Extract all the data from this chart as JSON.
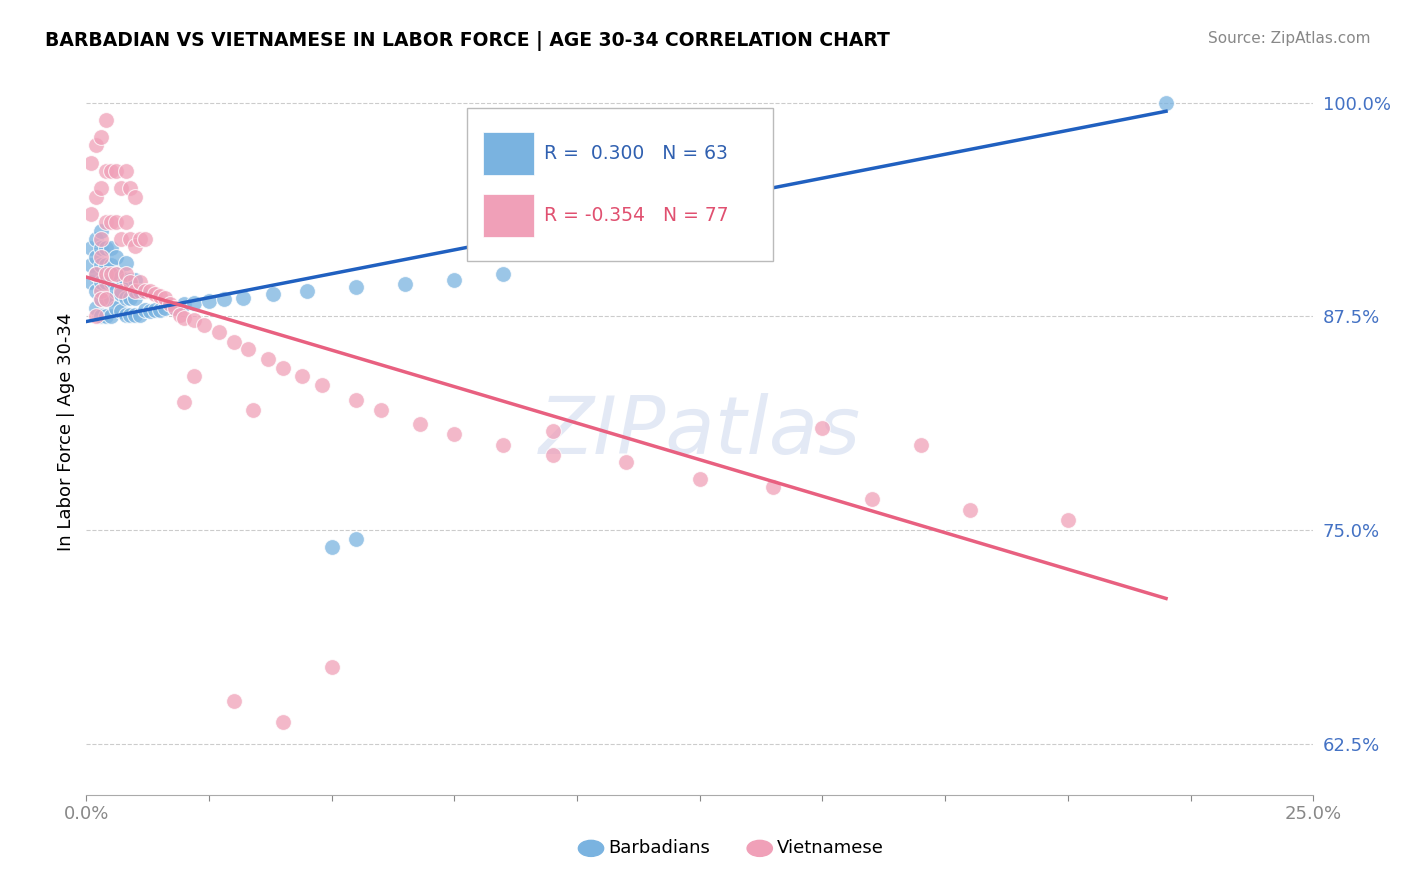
{
  "title": "BARBADIAN VS VIETNAMESE IN LABOR FORCE | AGE 30-34 CORRELATION CHART",
  "source": "Source: ZipAtlas.com",
  "ylabel": "In Labor Force | Age 30-34",
  "xlim": [
    0.0,
    0.25
  ],
  "ylim": [
    0.595,
    1.02
  ],
  "xticks": [
    0.0,
    0.025,
    0.05,
    0.075,
    0.1,
    0.125,
    0.15,
    0.175,
    0.2,
    0.225,
    0.25
  ],
  "yticks": [
    0.625,
    0.75,
    0.875,
    1.0
  ],
  "yticklabels": [
    "62.5%",
    "75.0%",
    "87.5%",
    "100.0%"
  ],
  "blue_R": 0.3,
  "blue_N": 63,
  "pink_R": -0.354,
  "pink_N": 77,
  "blue_color": "#7ab3e0",
  "pink_color": "#f0a0b8",
  "blue_line_color": "#2060c0",
  "pink_line_color": "#e86080",
  "legend_label_blue": "Barbadians",
  "legend_label_pink": "Vietnamese",
  "blue_scatter_x": [
    0.001,
    0.001,
    0.001,
    0.002,
    0.002,
    0.002,
    0.002,
    0.002,
    0.003,
    0.003,
    0.003,
    0.003,
    0.003,
    0.003,
    0.004,
    0.004,
    0.004,
    0.004,
    0.004,
    0.005,
    0.005,
    0.005,
    0.005,
    0.005,
    0.006,
    0.006,
    0.006,
    0.006,
    0.007,
    0.007,
    0.007,
    0.008,
    0.008,
    0.008,
    0.008,
    0.009,
    0.009,
    0.009,
    0.01,
    0.01,
    0.01,
    0.011,
    0.011,
    0.012,
    0.013,
    0.014,
    0.015,
    0.016,
    0.018,
    0.02,
    0.022,
    0.025,
    0.028,
    0.032,
    0.038,
    0.045,
    0.055,
    0.065,
    0.075,
    0.085,
    0.05,
    0.055,
    0.22
  ],
  "blue_scatter_y": [
    0.895,
    0.905,
    0.915,
    0.88,
    0.89,
    0.9,
    0.91,
    0.92,
    0.875,
    0.885,
    0.895,
    0.905,
    0.915,
    0.925,
    0.875,
    0.885,
    0.895,
    0.905,
    0.915,
    0.875,
    0.885,
    0.895,
    0.905,
    0.915,
    0.88,
    0.89,
    0.9,
    0.91,
    0.878,
    0.888,
    0.898,
    0.876,
    0.886,
    0.896,
    0.906,
    0.876,
    0.886,
    0.896,
    0.876,
    0.886,
    0.896,
    0.876,
    0.89,
    0.879,
    0.878,
    0.879,
    0.879,
    0.88,
    0.88,
    0.882,
    0.883,
    0.884,
    0.885,
    0.886,
    0.888,
    0.89,
    0.892,
    0.894,
    0.896,
    0.9,
    0.74,
    0.745,
    1.0
  ],
  "pink_scatter_x": [
    0.001,
    0.001,
    0.002,
    0.002,
    0.002,
    0.003,
    0.003,
    0.003,
    0.003,
    0.004,
    0.004,
    0.004,
    0.004,
    0.005,
    0.005,
    0.005,
    0.006,
    0.006,
    0.006,
    0.007,
    0.007,
    0.007,
    0.008,
    0.008,
    0.008,
    0.009,
    0.009,
    0.009,
    0.01,
    0.01,
    0.01,
    0.011,
    0.011,
    0.012,
    0.012,
    0.013,
    0.014,
    0.015,
    0.016,
    0.017,
    0.018,
    0.019,
    0.02,
    0.022,
    0.024,
    0.027,
    0.03,
    0.033,
    0.037,
    0.04,
    0.044,
    0.048,
    0.055,
    0.06,
    0.068,
    0.075,
    0.085,
    0.095,
    0.11,
    0.125,
    0.14,
    0.16,
    0.18,
    0.2,
    0.002,
    0.003,
    0.003,
    0.004,
    0.022,
    0.034,
    0.15,
    0.17,
    0.02,
    0.095,
    0.03,
    0.04,
    0.05
  ],
  "pink_scatter_y": [
    0.935,
    0.965,
    0.9,
    0.945,
    0.975,
    0.89,
    0.92,
    0.95,
    0.98,
    0.9,
    0.93,
    0.96,
    0.99,
    0.9,
    0.93,
    0.96,
    0.9,
    0.93,
    0.96,
    0.89,
    0.92,
    0.95,
    0.9,
    0.93,
    0.96,
    0.895,
    0.92,
    0.95,
    0.89,
    0.916,
    0.945,
    0.895,
    0.92,
    0.89,
    0.92,
    0.89,
    0.888,
    0.887,
    0.886,
    0.882,
    0.88,
    0.876,
    0.874,
    0.873,
    0.87,
    0.866,
    0.86,
    0.856,
    0.85,
    0.845,
    0.84,
    0.835,
    0.826,
    0.82,
    0.812,
    0.806,
    0.8,
    0.794,
    0.79,
    0.78,
    0.775,
    0.768,
    0.762,
    0.756,
    0.875,
    0.885,
    0.91,
    0.885,
    0.84,
    0.82,
    0.81,
    0.8,
    0.825,
    0.808,
    0.65,
    0.638,
    0.67
  ],
  "blue_line_x": [
    0.0,
    0.22
  ],
  "blue_line_y": [
    0.872,
    0.995
  ],
  "pink_line_x": [
    0.0,
    0.22
  ],
  "pink_line_y": [
    0.898,
    0.71
  ]
}
